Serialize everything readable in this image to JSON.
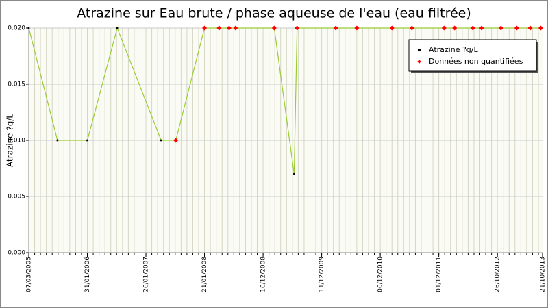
{
  "chart_data": {
    "type": "line",
    "title": "Atrazine sur Eau brute / phase aqueuse de l'eau (eau filtrée)",
    "y_label": "Atrazine ?g/L",
    "xlim": [
      0,
      87.7
    ],
    "xticks": [
      {
        "value": 0,
        "label": "07/03/2005"
      },
      {
        "value": 10,
        "label": "31/01/2006"
      },
      {
        "value": 20,
        "label": "26/01/2007"
      },
      {
        "value": 30,
        "label": "21/01/2008"
      },
      {
        "value": 40,
        "label": "16/12/2008"
      },
      {
        "value": 50,
        "label": "11/12/2009"
      },
      {
        "value": 60,
        "label": "06/12/2010"
      },
      {
        "value": 70,
        "label": "01/12/2011"
      },
      {
        "value": 80,
        "label": "26/10/2012"
      },
      {
        "value": 87.7,
        "label": "21/10/2013"
      }
    ],
    "x_minor_step": 1,
    "ylim": [
      0,
      0.02
    ],
    "yticks": [
      {
        "value": 0,
        "label": "0.000"
      },
      0.005,
      {
        "value": 0.01,
        "label": "0.010"
      },
      0.015,
      {
        "value": 0.02,
        "label": "0.020"
      }
    ],
    "grid": true,
    "legend": "upper right",
    "series": [
      {
        "name": "Atrazine ?g/L",
        "color": "#99cc33",
        "marker_color": "#000000",
        "x": [
          0,
          4.9,
          10,
          15.1,
          22.6,
          25.1,
          30,
          32.5,
          34.2,
          35.3,
          41.9,
          45.3,
          45.8,
          52.4,
          56,
          62,
          65.4,
          70.9,
          72.7,
          75.8,
          77.3,
          80.6,
          83.3,
          85.6,
          87.4
        ],
        "values": [
          0.02,
          0.01,
          0.01,
          0.02,
          0.01,
          0.01,
          0.02,
          0.02,
          0.02,
          0.02,
          0.02,
          0.007,
          0.02,
          0.02,
          0.02,
          0.02,
          0.02,
          0.02,
          0.02,
          0.02,
          0.02,
          0.02,
          0.02,
          0.02,
          0.02
        ]
      },
      {
        "name": "Données non quantifiées",
        "marker_color": "#ff0000",
        "x": [
          25.1,
          30,
          32.5,
          34.2,
          35.3,
          41.9,
          45.8,
          52.4,
          56,
          62,
          65.4,
          70.9,
          72.7,
          75.8,
          77.3,
          80.6,
          83.3,
          85.6,
          87.4
        ],
        "values": [
          0.01,
          0.02,
          0.02,
          0.02,
          0.02,
          0.02,
          0.02,
          0.02,
          0.02,
          0.02,
          0.02,
          0.02,
          0.02,
          0.02,
          0.02,
          0.02,
          0.02,
          0.02,
          0.02
        ]
      }
    ]
  }
}
